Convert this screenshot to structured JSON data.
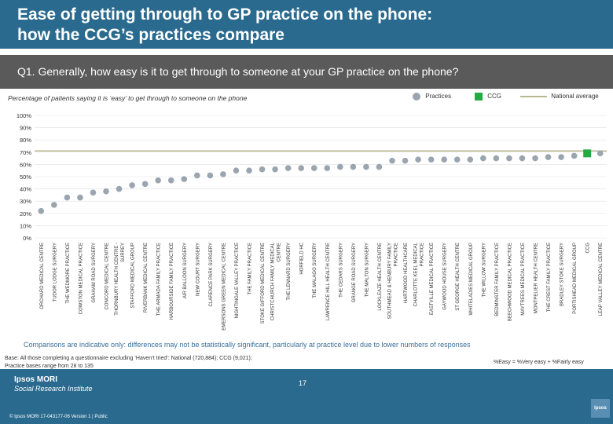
{
  "header": {
    "title_line1": "Ease of getting through to GP practice on the phone:",
    "title_line2": "how the CCG’s practices compare",
    "question": "Q1. Generally, how easy is it to get through to someone at your GP practice on the phone?"
  },
  "colors": {
    "practice": "#9aa5b0",
    "ccg": "#22aa44",
    "national": "#b7b790",
    "accent": "#2a6a8e"
  },
  "chart_data": {
    "type": "scatter",
    "subtitle": "Percentage of patients saying it is ‘easy’ to get through to someone on the phone",
    "legend": {
      "practices": "Practices",
      "ccg": "CCG",
      "national": "National average",
      "placement": "top-right"
    },
    "ylim": [
      0,
      100
    ],
    "yticks": [
      "0%",
      "10%",
      "20%",
      "30%",
      "40%",
      "50%",
      "60%",
      "70%",
      "80%",
      "90%",
      "100%"
    ],
    "national_average": 71,
    "categories": [
      "ORCHARD MEDICAL CENTRE",
      "TUDOR LODGE SURGERY",
      "THE WEDMORE PRACTICE",
      "COWSTON MEDICAL PRACTICE",
      "GRAHAM ROAD SURGERY",
      "CONCORD MEDICAL CENTRE",
      "THORNBURY HEALTH CENTRE - SURREY",
      "STAFFORD MEDICAL GROUP",
      "RIVERBANK MEDICAL CENTRE",
      "THE ARMADA FAMILY PRACTICE",
      "HARBOURSIDE FAMILY PRACTICE",
      "AIR BALLOON SURGERY",
      "NEW COURT SURGERY",
      "CLARENCE PARK SURGERY",
      "EMERSONS GREEN MEDICAL CENTRE",
      "NIGHTINGALE VALLEY PRACTICE",
      "THE FAMILY PRACTICE",
      "STOKE GIFFORD MEDICAL CENTRE",
      "CHRISTCHURCH FAMILY MEDICAL CENTRE",
      "THE LENNARD SURGERY",
      "HORFIELD HC",
      "THE MALAGO SURGERY",
      "LAWRENCE HILL HEALTH CENTRE",
      "THE CEDARS SURGERY",
      "GRANGE ROAD SURGERY",
      "THE MALTON SURGERY",
      "LOCKLEAZE HEALTH CENTRE",
      "SOUTHMEAD & HENBURY FAMILY PRACTICE",
      "HARTWOOD HEALTHCARE",
      "CHARLOTTE KEEL MEDICAL PRACTICE",
      "EASTVILLE MEDICAL PRACTICE",
      "GAYWOOD HOUSE SURGERY",
      "ST GEORGE HEALTH CENTRE",
      "WHITELADIES MEDICAL GROUP",
      "THE WILLOW SURGERY",
      "BEDMINSTER FAMILY PRACTICE",
      "BEECHWOOD MEDICAL PRACTICE",
      "MAYTREES MEDICAL PRACTICE",
      "MONTPELIER HEALTH CENTRE",
      "THE CREST FAMILY PRACTICE",
      "BRADLEY STOKE SURGERY",
      "PORTISHEAD MEDICAL GROUP",
      "CCG",
      "LEAP VALLEY MEDICAL CENTRE"
    ],
    "values": [
      22,
      27,
      33,
      33,
      37,
      38,
      40,
      43,
      44,
      47,
      47,
      48,
      51,
      51,
      52,
      55,
      55,
      56,
      56,
      57,
      57,
      57,
      57,
      58,
      58,
      58,
      58,
      63,
      63,
      64,
      64,
      64,
      64,
      64,
      65,
      65,
      65,
      65,
      65,
      66,
      66,
      67,
      69,
      69
    ],
    "ccg_index": 42
  },
  "footer": {
    "note": "Comparisons are indicative only: differences may not be statistically significant, particularly at practice level due to lower numbers of responses",
    "base_line1": "Base: All those completing a questionnaire excluding ‘Haven’t tried’: National (720,884); CCG (9,021);",
    "base_line2": "Practice bases range from 28 to 135",
    "formula": "%Easy = %Very easy + %Fairly easy",
    "logo_main": "Ipsos MORI",
    "logo_sub": "Social Research Institute",
    "copyright": "© Ipsos MORI    17-043177-06 Version 1 | Public",
    "page": "17",
    "ipsos_badge": "Ipsos"
  }
}
